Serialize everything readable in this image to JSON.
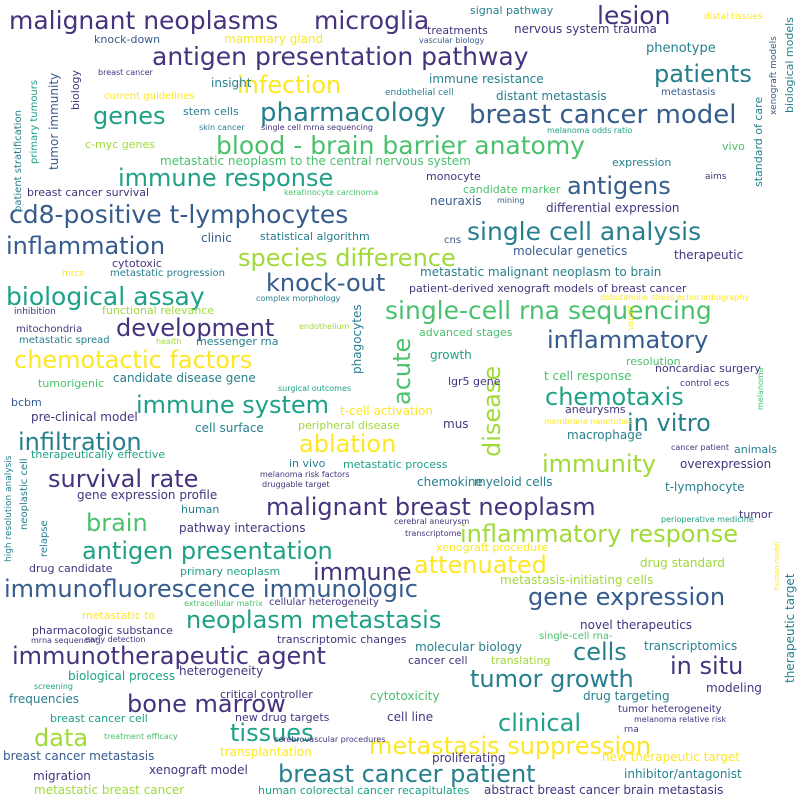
{
  "palette": {
    "background": "#ffffff",
    "dark_purple": "#46337e",
    "indigo": "#365c8d",
    "blue": "#277f8e",
    "teal": "#1fa187",
    "green": "#4ac16d",
    "lime": "#a0da39",
    "yellow": "#fde725"
  },
  "words": [
    "malignant neoplasms",
    "microglia",
    "lesion",
    "antigen presentation pathway",
    "patients",
    "infection",
    "genes",
    "pharmacology",
    "breast cancer model",
    "blood - brain barrier anatomy",
    "immune response",
    "antigens",
    "cd8-positive t-lymphocytes",
    "single cell analysis",
    "inflammation",
    "species difference",
    "knock-out",
    "biological assay",
    "single-cell rna sequencing",
    "development",
    "inflammatory",
    "chemotactic factors",
    "acute",
    "disease",
    "immune system",
    "chemotaxis",
    "in vitro",
    "infiltration",
    "ablation",
    "immunity",
    "survival rate",
    "malignant breast neoplasm",
    "inflammatory response",
    "brain",
    "antigen presentation",
    "immune",
    "attenuated",
    "immunofluorescence immunologic",
    "gene expression",
    "neoplasm metastasis",
    "immunotherapeutic agent",
    "cells",
    "in situ",
    "tumor growth",
    "bone marrow",
    "clinical",
    "data",
    "tissues",
    "metastasis suppression",
    "breast cancer patient",
    "signal pathway",
    "distal tissues",
    "knock-down",
    "mammary gland",
    "nervous system trauma",
    "treatments",
    "vascular biology",
    "phenotype",
    "xenograft models",
    "breast cancer",
    "insight",
    "immune resistance",
    "biology",
    "endothelial cell",
    "metastasis",
    "biological models",
    "current guidelines",
    "distant metastasis",
    "standard of care",
    "primary tumours",
    "stem cells",
    "patient stratification",
    "skin cancer",
    "single cell mrna sequencing",
    "melanoma odds ratio",
    "tumor immunity",
    "c-myc genes",
    "vivo",
    "metastatic neoplasm to the central nervous system",
    "expression",
    "monocyte",
    "aims",
    "breast cancer survival",
    "keratinocyte carcinoma",
    "candidate marker",
    "neuraxis",
    "mining",
    "differential expression",
    "clinic",
    "statistical algorithm",
    "cns",
    "cytotoxic",
    "molecular genetics",
    "therapeutic",
    "metastatic progression",
    "mrcs",
    "metastatic malignant neoplasm to brain",
    "functional relevance",
    "complex morphology",
    "patient-derived xenograft models of breast cancer",
    "inhibition",
    "dobutamine stress echocardiography",
    "mitochondria",
    "endothelium",
    "uspstf",
    "phagocytes",
    "advanced stages",
    "metastatic spread",
    "health",
    "messenger rna",
    "growth",
    "resolution",
    "noncardiac surgery",
    "tumorigenic",
    "candidate disease gene",
    "lgr5 gene",
    "t cell response",
    "surgical outcomes",
    "control ecs",
    "bcbm",
    "pre-clinical model",
    "t-cell activation",
    "aneurysms",
    "melanoma",
    "membrane nanotubes",
    "cell surface",
    "mus",
    "macrophage",
    "peripheral disease",
    "cancer patient",
    "therapeutically effective",
    "animals",
    "in vivo",
    "metastatic process",
    "overexpression",
    "melanoma risk factors",
    "druggable target",
    "chemokine",
    "myeloid cells",
    "gene expression profile",
    "t-lymphocyte",
    "human",
    "pathway interactions",
    "tumor",
    "neoplastic cell",
    "high resolution analysis",
    "cerebral aneurysm",
    "perioperative medicine",
    "relapse",
    "transcriptome",
    "xenograft procedure",
    "drug candidate",
    "primary neoplasm",
    "drug standard",
    "human model",
    "metastasis-initiating cells",
    "extracellular matrix",
    "cellular heterogeneity",
    "metastatic to",
    "pharmacologic substance",
    "novel therapeutics",
    "therapeutic target",
    "early detection",
    "transcriptomic changes",
    "single-cell rna-",
    "mrna sequencing",
    "transcriptomics",
    "molecular biology",
    "biological process",
    "heterogeneity",
    "cancer cell",
    "translating",
    "screening",
    "modeling",
    "frequencies",
    "critical controller",
    "cytotoxicity",
    "drug targeting",
    "tumor heterogeneity",
    "breast cancer cell",
    "new drug targets",
    "cell line",
    "melanoma relative risk",
    "treatment efficacy",
    "cerebrovascular procedures",
    "rna",
    "breast cancer metastasis",
    "transplantation",
    "proliferating",
    "new therapeutic target",
    "xenograft model",
    "migration",
    "inhibitor/antagonist",
    "metastatic breast cancer",
    "human colorectal cancer recapitulates",
    "abstract breast cancer brain metastasis"
  ]
}
